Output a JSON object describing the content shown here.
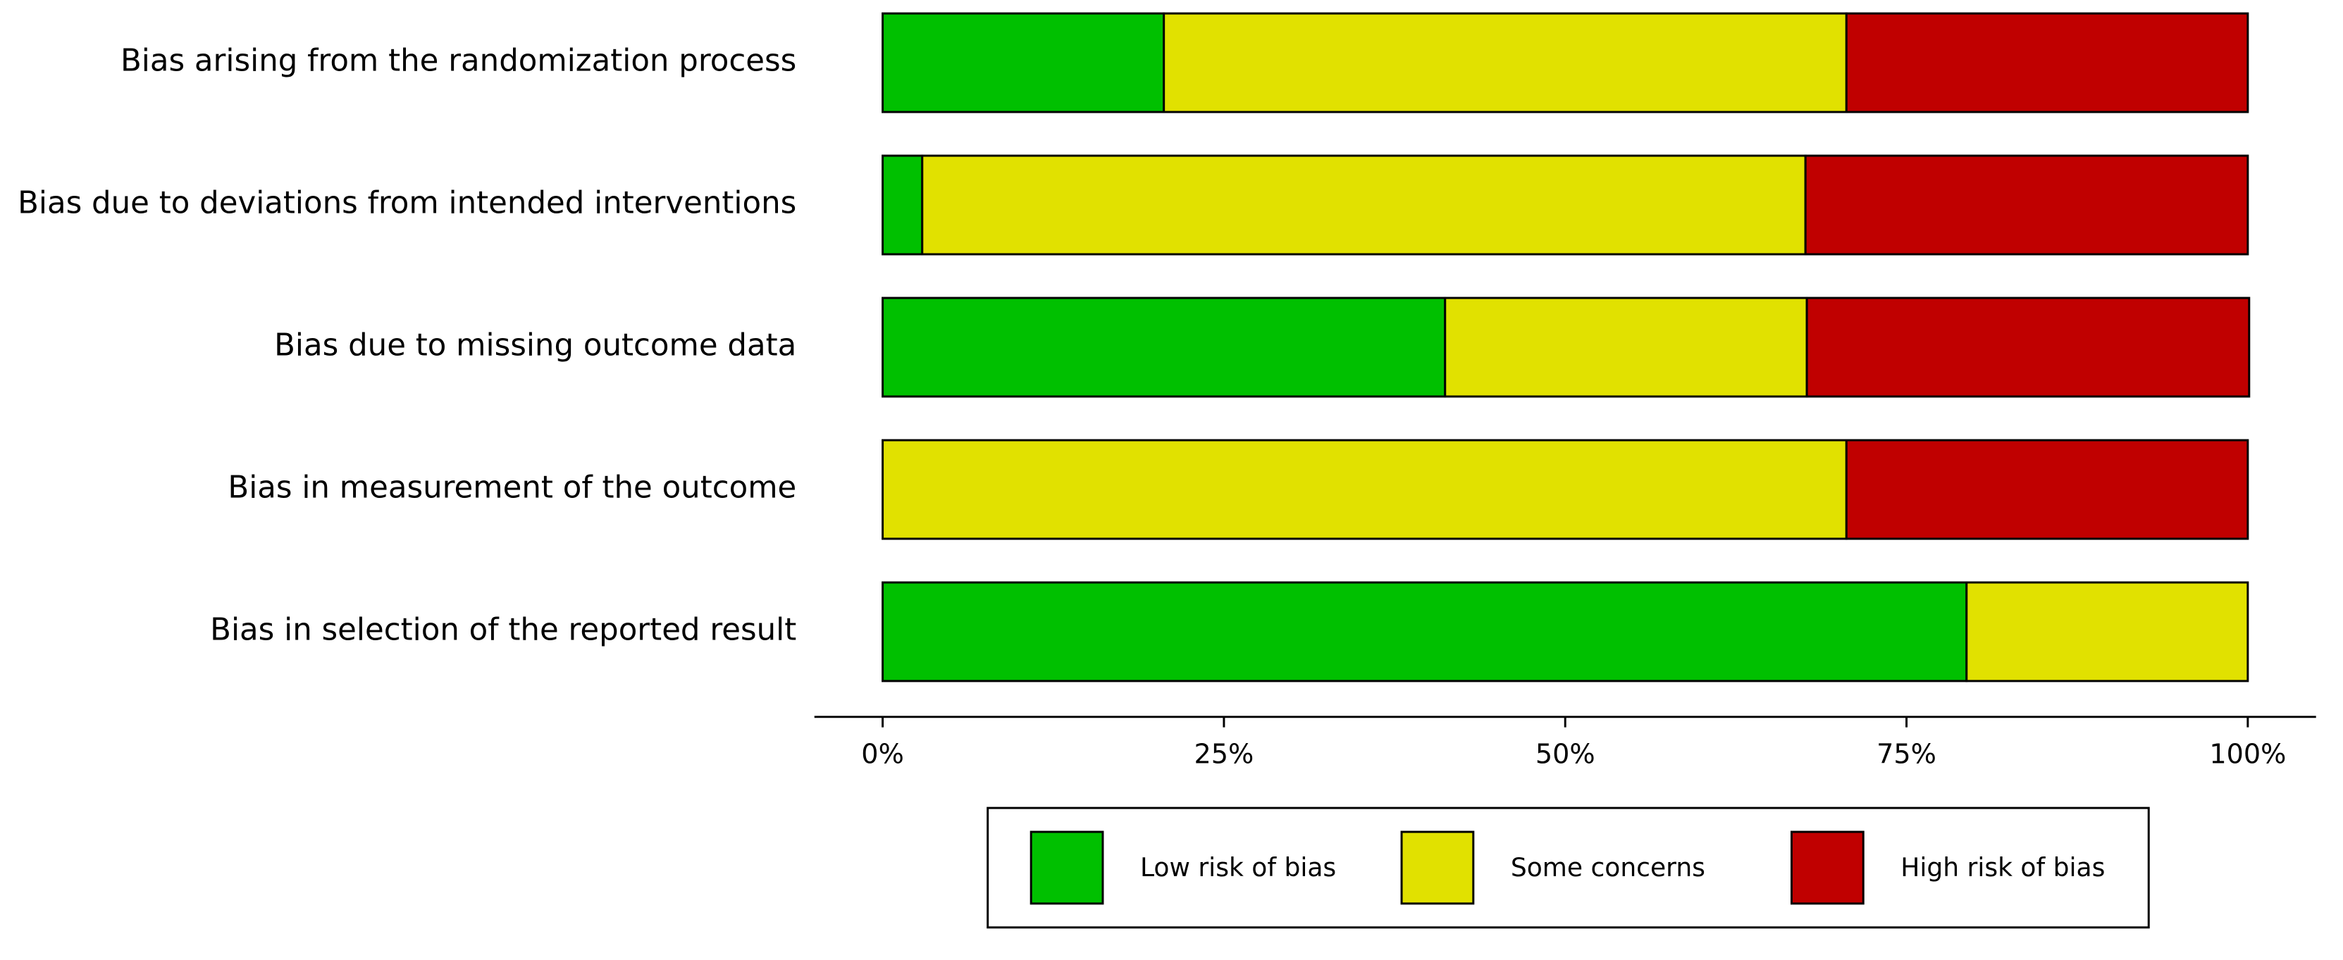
{
  "chart_data": {
    "type": "stacked-barh",
    "categories": [
      "Bias arising from the randomization process",
      "Bias due to deviations from intended interventions",
      "Bias due to missing outcome data",
      "Bias in measurement of the outcome",
      "Bias in selection of the reported result"
    ],
    "series": [
      {
        "name": "Low risk of bias",
        "color": "#00c000",
        "values": [
          20.6,
          2.9,
          41.2,
          0,
          79.4
        ]
      },
      {
        "name": "Some concerns",
        "color": "#e1e100",
        "values": [
          50.0,
          64.7,
          26.5,
          70.6,
          20.6
        ]
      },
      {
        "name": "High risk of bias",
        "color": "#c00000",
        "values": [
          29.4,
          32.4,
          32.4,
          29.4,
          0
        ]
      }
    ],
    "xlim": [
      -5,
      105
    ],
    "xticks": [
      {
        "value": 0,
        "label": "0%"
      },
      {
        "value": 25,
        "label": "25%"
      },
      {
        "value": 50,
        "label": "50%"
      },
      {
        "value": 75,
        "label": "75%"
      },
      {
        "value": 100,
        "label": "100%"
      }
    ],
    "legend": "bottom"
  }
}
